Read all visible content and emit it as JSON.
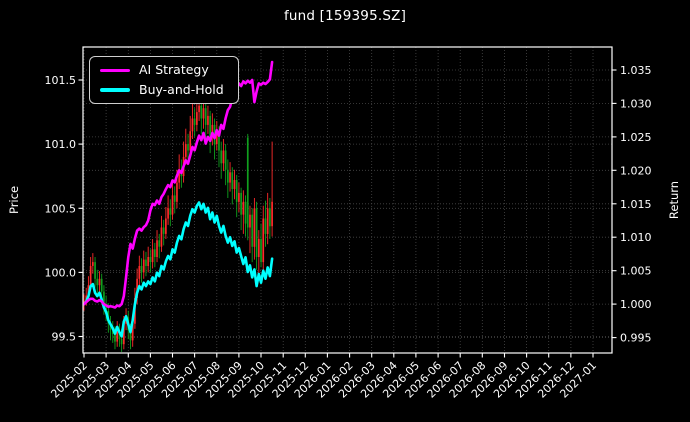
{
  "title": "fund [159395.SZ]",
  "axes": {
    "left_label": "Price",
    "right_label": "Return"
  },
  "legend": {
    "items": [
      {
        "label": "AI Strategy",
        "color": "#ff00ff"
      },
      {
        "label": "Buy-and-Hold",
        "color": "#00ffff"
      }
    ]
  },
  "chart_data": {
    "type": "candlestick_with_lines",
    "title": "fund [159395.SZ]",
    "ylabel_left": "Price",
    "ylabel_right": "Return",
    "grid": "dotted",
    "legend_position": "upper-left",
    "x_tick_labels": [
      "2025-02",
      "2025-03",
      "2025-04",
      "2025-05",
      "2025-06",
      "2025-07",
      "2025-08",
      "2025-09",
      "2025-10",
      "2025-11",
      "2025-12",
      "2026-01",
      "2026-02",
      "2026-03",
      "2026-04",
      "2026-05",
      "2026-06",
      "2026-07",
      "2026-08",
      "2026-09",
      "2026-10",
      "2026-11",
      "2026-12",
      "2027-01"
    ],
    "price_ticks": [
      101.5,
      101.0,
      100.5,
      100.0,
      99.5
    ],
    "price_tick_labels": [
      "101.5",
      "101.0",
      "100.5",
      "100.0",
      "99.5"
    ],
    "price_range": [
      99.37,
      101.76
    ],
    "return_ticks": [
      1.035,
      1.03,
      1.025,
      1.02,
      1.015,
      1.01,
      1.005,
      1.0,
      0.995
    ],
    "return_tick_labels": [
      "1.035",
      "1.030",
      "1.025",
      "1.020",
      "1.015",
      "1.010",
      "1.005",
      "1.000",
      "0.995"
    ],
    "return_range": [
      0.9928,
      1.0384
    ],
    "colors": {
      "up_candle": "#ff2a2a",
      "down_candle": "#10a01e",
      "ai_line": "#ff00ff",
      "bh_line": "#00ffff",
      "grid": "#474747",
      "frame": "#ffffff",
      "text": "#ffffff",
      "background": "#000000"
    },
    "t_start_label": "2025-02",
    "t_step_months": 0.1,
    "candles_ohlc": [
      [
        99.75,
        99.83,
        99.7,
        99.78
      ],
      [
        99.78,
        99.88,
        99.74,
        99.82
      ],
      [
        99.82,
        99.97,
        99.78,
        99.9
      ],
      [
        99.9,
        100.12,
        99.86,
        100.05
      ],
      [
        100.05,
        100.15,
        99.99,
        100.08
      ],
      [
        100.08,
        100.12,
        99.88,
        99.95
      ],
      [
        99.95,
        100.02,
        99.82,
        99.9
      ],
      [
        99.9,
        100.01,
        99.85,
        99.95
      ],
      [
        99.95,
        99.99,
        99.77,
        99.85
      ],
      [
        99.85,
        99.9,
        99.67,
        99.75
      ],
      [
        99.75,
        99.82,
        99.62,
        99.7
      ],
      [
        99.7,
        99.76,
        99.53,
        99.6
      ],
      [
        99.6,
        99.66,
        99.47,
        99.55
      ],
      [
        99.55,
        99.62,
        99.45,
        99.52
      ],
      [
        99.52,
        99.58,
        99.4,
        99.46
      ],
      [
        99.46,
        99.62,
        99.42,
        99.55
      ],
      [
        99.55,
        99.6,
        99.42,
        99.48
      ],
      [
        99.48,
        99.56,
        99.38,
        99.44
      ],
      [
        99.44,
        99.66,
        99.4,
        99.6
      ],
      [
        99.6,
        99.72,
        99.55,
        99.65
      ],
      [
        99.65,
        99.7,
        99.48,
        99.55
      ],
      [
        99.55,
        99.6,
        99.4,
        99.47
      ],
      [
        99.47,
        99.67,
        99.42,
        99.6
      ],
      [
        99.6,
        99.88,
        99.56,
        99.8
      ],
      [
        99.8,
        100.03,
        99.75,
        99.95
      ],
      [
        99.95,
        100.13,
        99.9,
        100.05
      ],
      [
        100.05,
        100.11,
        99.92,
        100.0
      ],
      [
        100.0,
        100.17,
        99.95,
        100.1
      ],
      [
        100.1,
        100.16,
        99.97,
        100.05
      ],
      [
        100.05,
        100.2,
        100.0,
        100.12
      ],
      [
        100.12,
        100.18,
        100.0,
        100.08
      ],
      [
        100.08,
        100.26,
        100.03,
        100.18
      ],
      [
        100.18,
        100.23,
        100.04,
        100.12
      ],
      [
        100.12,
        100.33,
        100.08,
        100.25
      ],
      [
        100.25,
        100.3,
        100.11,
        100.2
      ],
      [
        100.2,
        100.44,
        100.16,
        100.35
      ],
      [
        100.35,
        100.41,
        100.21,
        100.3
      ],
      [
        100.3,
        100.51,
        100.26,
        100.42
      ],
      [
        100.42,
        100.6,
        100.37,
        100.5
      ],
      [
        100.5,
        100.57,
        100.36,
        100.45
      ],
      [
        100.45,
        100.7,
        100.41,
        100.6
      ],
      [
        100.6,
        100.67,
        100.46,
        100.55
      ],
      [
        100.55,
        100.8,
        100.5,
        100.7
      ],
      [
        100.7,
        100.92,
        100.65,
        100.8
      ],
      [
        100.8,
        100.88,
        100.66,
        100.75
      ],
      [
        100.75,
        101.02,
        100.7,
        100.9
      ],
      [
        100.9,
        101.12,
        100.84,
        101.0
      ],
      [
        101.0,
        101.08,
        100.86,
        100.95
      ],
      [
        100.95,
        101.22,
        100.9,
        101.1
      ],
      [
        101.1,
        101.32,
        101.04,
        101.2
      ],
      [
        101.2,
        101.28,
        101.06,
        101.15
      ],
      [
        101.15,
        101.35,
        101.1,
        101.25
      ],
      [
        101.25,
        101.42,
        101.18,
        101.3
      ],
      [
        101.3,
        101.36,
        101.08,
        101.2
      ],
      [
        101.2,
        101.36,
        101.12,
        101.28
      ],
      [
        101.28,
        101.33,
        101.02,
        101.15
      ],
      [
        101.15,
        101.3,
        101.08,
        101.22
      ],
      [
        101.22,
        101.26,
        100.93,
        101.05
      ],
      [
        101.05,
        101.24,
        100.99,
        101.15
      ],
      [
        101.15,
        101.2,
        100.88,
        101.0
      ],
      [
        101.0,
        101.18,
        100.95,
        101.1
      ],
      [
        101.1,
        101.14,
        100.82,
        100.95
      ],
      [
        100.95,
        101.02,
        100.73,
        100.85
      ],
      [
        100.85,
        101.04,
        100.79,
        100.95
      ],
      [
        100.95,
        101.0,
        100.68,
        100.8
      ],
      [
        100.8,
        100.88,
        100.58,
        100.7
      ],
      [
        100.7,
        100.86,
        100.63,
        100.78
      ],
      [
        100.78,
        100.82,
        100.53,
        100.65
      ],
      [
        100.65,
        100.8,
        100.57,
        100.72
      ],
      [
        100.72,
        100.76,
        100.43,
        100.55
      ],
      [
        100.55,
        100.7,
        100.47,
        100.62
      ],
      [
        100.62,
        100.66,
        100.33,
        100.45
      ],
      [
        100.45,
        100.64,
        100.3,
        100.55
      ],
      [
        100.55,
        100.6,
        100.28,
        100.38
      ],
      [
        101.05,
        101.08,
        100.25,
        100.35
      ],
      [
        100.35,
        100.52,
        100.15,
        100.45
      ],
      [
        100.45,
        100.5,
        100.08,
        100.2
      ],
      [
        100.2,
        100.58,
        100.1,
        100.5
      ],
      [
        100.5,
        100.55,
        100.02,
        100.12
      ],
      [
        100.12,
        100.33,
        99.96,
        100.26
      ],
      [
        100.26,
        100.38,
        100.04,
        100.08
      ],
      [
        100.08,
        100.52,
        100.0,
        100.42
      ],
      [
        100.42,
        100.56,
        100.2,
        100.3
      ],
      [
        100.3,
        100.62,
        100.22,
        100.5
      ],
      [
        100.5,
        100.58,
        100.26,
        100.36
      ],
      [
        100.36,
        101.02,
        100.28,
        100.55
      ]
    ],
    "series": [
      {
        "name": "AI Strategy",
        "axis": "return",
        "color": "#ff00ff",
        "values": [
          1.0,
          1.0003,
          1.0006,
          1.0008,
          1.0008,
          1.0005,
          1.0004,
          1.0006,
          1.0004,
          1.0,
          0.9998,
          0.9996,
          0.9997,
          0.9996,
          0.9995,
          0.9998,
          0.9997,
          1.0,
          1.0012,
          1.004,
          1.007,
          1.009,
          1.0083,
          1.0098,
          1.011,
          1.0113,
          1.011,
          1.0115,
          1.0118,
          1.0125,
          1.014,
          1.015,
          1.0148,
          1.0155,
          1.015,
          1.016,
          1.0165,
          1.0172,
          1.0178,
          1.0175,
          1.0185,
          1.0182,
          1.0192,
          1.02,
          1.0196,
          1.0206,
          1.0215,
          1.021,
          1.0222,
          1.0235,
          1.023,
          1.0242,
          1.0252,
          1.0245,
          1.0256,
          1.024,
          1.025,
          1.0244,
          1.0256,
          1.0248,
          1.026,
          1.0252,
          1.0268,
          1.0262,
          1.0278,
          1.029,
          1.0295,
          1.0308,
          1.0318,
          1.0325,
          1.033,
          1.0326,
          1.0333,
          1.033,
          1.0334,
          1.0331,
          1.0335,
          1.0302,
          1.0318,
          1.033,
          1.0328,
          1.0331,
          1.0329,
          1.0332,
          1.0336,
          1.0362
        ]
      },
      {
        "name": "Buy-and-Hold",
        "axis": "return",
        "color": "#00ffff",
        "values": [
          1.0,
          1.0004,
          1.0012,
          1.0027,
          1.003,
          1.0017,
          1.0012,
          1.0017,
          1.0007,
          0.9995,
          0.9988,
          0.9976,
          0.997,
          0.9964,
          0.9956,
          0.9966,
          0.9958,
          0.9952,
          0.9974,
          0.9982,
          0.997,
          0.9958,
          0.9976,
          1.0,
          1.0017,
          1.0027,
          1.0022,
          1.0032,
          1.0027,
          1.0034,
          1.003,
          1.004,
          1.0034,
          1.0047,
          1.0042,
          1.0057,
          1.0052,
          1.0064,
          1.0072,
          1.0067,
          1.0082,
          1.0077,
          1.0092,
          1.0102,
          1.0097,
          1.0112,
          1.0122,
          1.0117,
          1.0132,
          1.0142,
          1.0137,
          1.0147,
          1.0152,
          1.0142,
          1.015,
          1.0137,
          1.0144,
          1.0127,
          1.0137,
          1.0122,
          1.0132,
          1.0117,
          1.0107,
          1.0117,
          1.0102,
          1.0092,
          1.01,
          1.0087,
          1.0094,
          1.0077,
          1.0084,
          1.0072,
          1.006,
          1.007,
          1.0048,
          1.0058,
          1.004,
          1.0052,
          1.0027,
          1.0045,
          1.0032,
          1.005,
          1.0038,
          1.0055,
          1.0042,
          1.0068
        ]
      }
    ]
  }
}
